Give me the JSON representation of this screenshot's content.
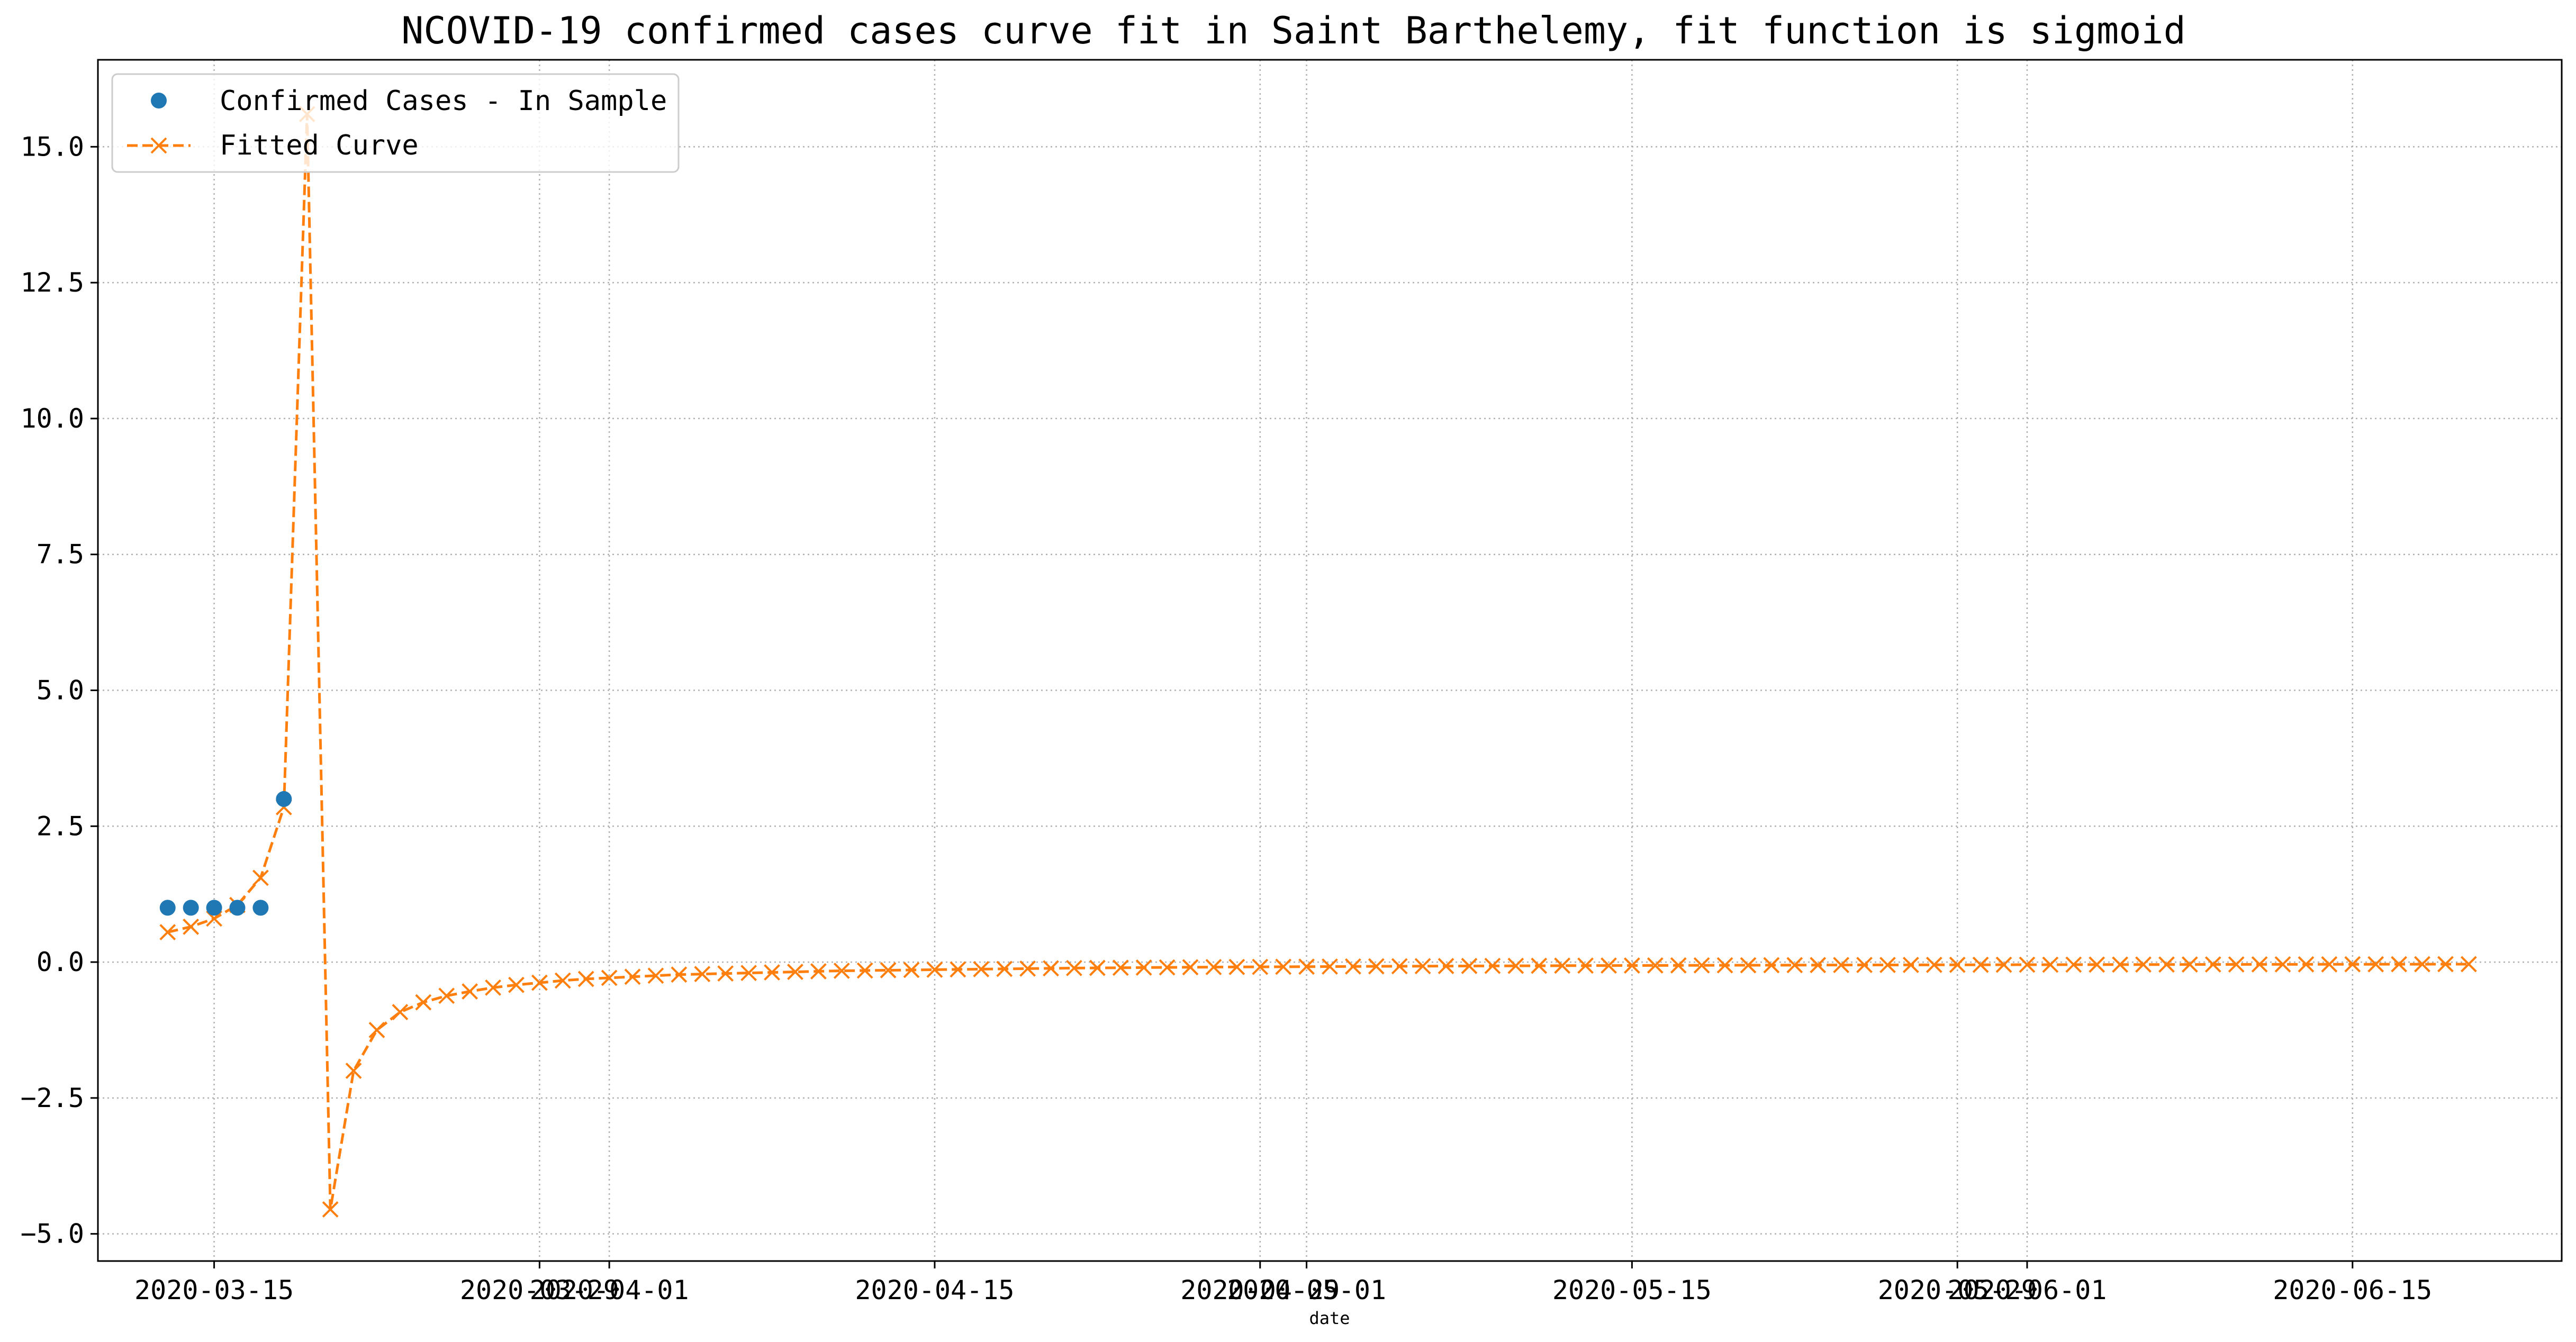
{
  "chart_data": {
    "type": "line",
    "title": "NCOVID-19 confirmed cases curve fit in Saint Barthelemy, fit function is sigmoid",
    "xlabel": "date",
    "ylabel": "",
    "xlim": [
      "2020-03-10",
      "2020-06-24"
    ],
    "ylim": [
      -5.5,
      16.6
    ],
    "grid": true,
    "legend_position": "top-left",
    "colors": {
      "observed": "#1f77b4",
      "fitted": "#ff7f0e",
      "grid": "#b0b0b0"
    },
    "x_ticks": [
      {
        "date": "2020-03-15",
        "label": "2020-03-15"
      },
      {
        "date": "2020-03-29",
        "label": "2020-03-29"
      },
      {
        "date": "2020-04-01",
        "label": "2020-04-01"
      },
      {
        "date": "2020-04-15",
        "label": "2020-04-15"
      },
      {
        "date": "2020-04-29",
        "label": "2020-04-29"
      },
      {
        "date": "2020-05-01",
        "label": "2020-05-01"
      },
      {
        "date": "2020-05-15",
        "label": "2020-05-15"
      },
      {
        "date": "2020-05-29",
        "label": "2020-05-29"
      },
      {
        "date": "2020-06-01",
        "label": "2020-06-01"
      },
      {
        "date": "2020-06-15",
        "label": "2020-06-15"
      }
    ],
    "y_ticks": [
      {
        "value": -5.0,
        "label": "−5.0"
      },
      {
        "value": -2.5,
        "label": "−2.5"
      },
      {
        "value": 0.0,
        "label": "0.0"
      },
      {
        "value": 2.5,
        "label": "2.5"
      },
      {
        "value": 5.0,
        "label": "5.0"
      },
      {
        "value": 7.5,
        "label": "7.5"
      },
      {
        "value": 10.0,
        "label": "10.0"
      },
      {
        "value": 12.5,
        "label": "12.5"
      },
      {
        "value": 15.0,
        "label": "15.0"
      }
    ],
    "series": [
      {
        "name": "Confirmed Cases - In Sample",
        "style": "markers",
        "x": [
          "2020-03-13",
          "2020-03-14",
          "2020-03-15",
          "2020-03-16",
          "2020-03-17",
          "2020-03-18"
        ],
        "y": [
          1,
          1,
          1,
          1,
          1,
          3
        ]
      },
      {
        "name": "Fitted Curve",
        "style": "dashed-line-x-markers",
        "x": [
          "2020-03-13",
          "2020-03-14",
          "2020-03-15",
          "2020-03-16",
          "2020-03-17",
          "2020-03-18",
          "2020-03-19",
          "2020-03-20",
          "2020-03-21",
          "2020-03-22",
          "2020-03-23",
          "2020-03-24",
          "2020-03-25",
          "2020-03-26",
          "2020-03-27",
          "2020-03-28",
          "2020-03-29",
          "2020-03-30",
          "2020-03-31",
          "2020-04-01",
          "2020-04-02",
          "2020-04-03",
          "2020-04-04",
          "2020-04-05",
          "2020-04-06",
          "2020-04-07",
          "2020-04-08",
          "2020-04-09",
          "2020-04-10",
          "2020-04-11",
          "2020-04-12",
          "2020-04-13",
          "2020-04-14",
          "2020-04-15",
          "2020-04-16",
          "2020-04-17",
          "2020-04-18",
          "2020-04-19",
          "2020-04-20",
          "2020-04-21",
          "2020-04-22",
          "2020-04-23",
          "2020-04-24",
          "2020-04-25",
          "2020-04-26",
          "2020-04-27",
          "2020-04-28",
          "2020-04-29",
          "2020-04-30",
          "2020-05-01",
          "2020-05-02",
          "2020-05-03",
          "2020-05-04",
          "2020-05-05",
          "2020-05-06",
          "2020-05-07",
          "2020-05-08",
          "2020-05-09",
          "2020-05-10",
          "2020-05-11",
          "2020-05-12",
          "2020-05-13",
          "2020-05-14",
          "2020-05-15",
          "2020-05-16",
          "2020-05-17",
          "2020-05-18",
          "2020-05-19",
          "2020-05-20",
          "2020-05-21",
          "2020-05-22",
          "2020-05-23",
          "2020-05-24",
          "2020-05-25",
          "2020-05-26",
          "2020-05-27",
          "2020-05-28",
          "2020-05-29",
          "2020-05-30",
          "2020-05-31",
          "2020-06-01",
          "2020-06-02",
          "2020-06-03",
          "2020-06-04",
          "2020-06-05",
          "2020-06-06",
          "2020-06-07",
          "2020-06-08",
          "2020-06-09",
          "2020-06-10",
          "2020-06-11",
          "2020-06-12",
          "2020-06-13",
          "2020-06-14",
          "2020-06-15",
          "2020-06-16",
          "2020-06-17",
          "2020-06-18",
          "2020-06-19",
          "2020-06-20"
        ],
        "y": [
          0.55,
          0.65,
          0.8,
          1.05,
          1.55,
          2.85,
          15.6,
          -4.55,
          -2.0,
          -1.25,
          -0.92,
          -0.74,
          -0.62,
          -0.54,
          -0.47,
          -0.42,
          -0.38,
          -0.34,
          -0.31,
          -0.29,
          -0.27,
          -0.25,
          -0.23,
          -0.22,
          -0.21,
          -0.2,
          -0.19,
          -0.18,
          -0.17,
          -0.16,
          -0.155,
          -0.15,
          -0.145,
          -0.14,
          -0.135,
          -0.13,
          -0.125,
          -0.12,
          -0.115,
          -0.11,
          -0.107,
          -0.104,
          -0.101,
          -0.098,
          -0.095,
          -0.092,
          -0.09,
          -0.088,
          -0.086,
          -0.084,
          -0.082,
          -0.08,
          -0.078,
          -0.076,
          -0.075,
          -0.073,
          -0.072,
          -0.07,
          -0.069,
          -0.068,
          -0.066,
          -0.065,
          -0.064,
          -0.063,
          -0.062,
          -0.061,
          -0.06,
          -0.059,
          -0.058,
          -0.057,
          -0.056,
          -0.055,
          -0.054,
          -0.053,
          -0.053,
          -0.052,
          -0.051,
          -0.05,
          -0.05,
          -0.049,
          -0.048,
          -0.048,
          -0.047,
          -0.046,
          -0.046,
          -0.045,
          -0.045,
          -0.044,
          -0.043,
          -0.043,
          -0.042,
          -0.042,
          -0.041,
          -0.041,
          -0.04,
          -0.04,
          -0.039,
          -0.039,
          -0.038,
          -0.038
        ]
      }
    ]
  }
}
